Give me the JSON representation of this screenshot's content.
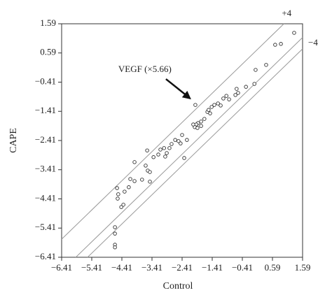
{
  "chart_data": {
    "type": "scatter",
    "x_label": "Control",
    "y_label": "CAPE",
    "xlim": [
      -6.41,
      1.59
    ],
    "ylim": [
      -6.41,
      1.59
    ],
    "xticks": [
      {
        "value": -6.41,
        "label": "−6.41"
      },
      {
        "value": -5.41,
        "label": "−5.41"
      },
      {
        "value": -4.41,
        "label": "−4.41"
      },
      {
        "value": -3.41,
        "label": "−3.41"
      },
      {
        "value": -2.41,
        "label": "−2.41"
      },
      {
        "value": -1.41,
        "label": "−1.41"
      },
      {
        "value": -0.41,
        "label": "−0.41"
      },
      0.59,
      1.59
    ],
    "yticks": [
      {
        "value": -6.41,
        "label": "−6.41"
      },
      {
        "value": -5.41,
        "label": "−5.41"
      },
      {
        "value": -4.41,
        "label": "−4.41"
      },
      {
        "value": -3.41,
        "label": "−3.41"
      },
      {
        "value": -2.41,
        "label": "−2.41"
      },
      {
        "value": -1.41,
        "label": "−1.41"
      },
      {
        "value": -0.41,
        "label": "−0.41"
      },
      0.59,
      1.59
    ],
    "reference_lines": [
      {
        "label": "+4",
        "offset": 0.62
      },
      {
        "offset": -0.47
      },
      {
        "label": "−4",
        "offset": -0.86
      }
    ],
    "annotation": {
      "text": "VEGF (×5.66)",
      "x": -1.97,
      "y": -1.19
    },
    "series": [
      {
        "color": "#333333",
        "x": [
          1.31,
          0.68,
          0.87,
          0.38,
          0.03,
          -0.01,
          -0.29,
          -0.6,
          -0.55,
          -0.64,
          -0.94,
          -0.85,
          -1.04,
          -1.22,
          -1.13,
          -1.34,
          -1.57,
          -1.48,
          -1.43,
          -1.53,
          -1.67,
          -1.78,
          -1.88,
          -1.94,
          -1.78,
          -1.99,
          -1.9,
          -2.04,
          -1.97,
          -2.41,
          -2.25,
          -2.53,
          -2.64,
          -2.46,
          -2.76,
          -2.83,
          -3.01,
          -3.13,
          -2.92,
          -3.2,
          -2.97,
          -3.57,
          -3.36,
          -3.99,
          -3.62,
          -3.55,
          -3.48,
          -3.74,
          -3.48,
          -3.99,
          -4.13,
          -4.18,
          -4.32,
          -4.57,
          -4.53,
          -4.55,
          -4.36,
          -4.43,
          -2.34,
          -4.64,
          -4.64,
          -4.64,
          -4.64
        ],
        "y": [
          1.28,
          0.87,
          0.9,
          0.18,
          0.01,
          -0.47,
          -0.57,
          -0.64,
          -0.78,
          -0.85,
          -0.88,
          -1.0,
          -0.97,
          -1.14,
          -1.21,
          -1.19,
          -1.43,
          -1.48,
          -1.26,
          -1.36,
          -1.67,
          -1.76,
          -1.81,
          -1.86,
          -1.91,
          -1.95,
          -1.98,
          -1.86,
          -1.19,
          -2.22,
          -2.39,
          -2.43,
          -2.39,
          -2.51,
          -2.53,
          -2.67,
          -2.67,
          -2.72,
          -2.84,
          -2.89,
          -2.96,
          -2.75,
          -2.98,
          -3.15,
          -3.27,
          -3.44,
          -3.49,
          -3.75,
          -3.82,
          -3.8,
          -3.73,
          -4.01,
          -4.16,
          -4.04,
          -4.25,
          -4.4,
          -4.61,
          -4.69,
          -3.01,
          -5.38,
          -5.98,
          -6.07,
          -5.6
        ]
      }
    ]
  }
}
